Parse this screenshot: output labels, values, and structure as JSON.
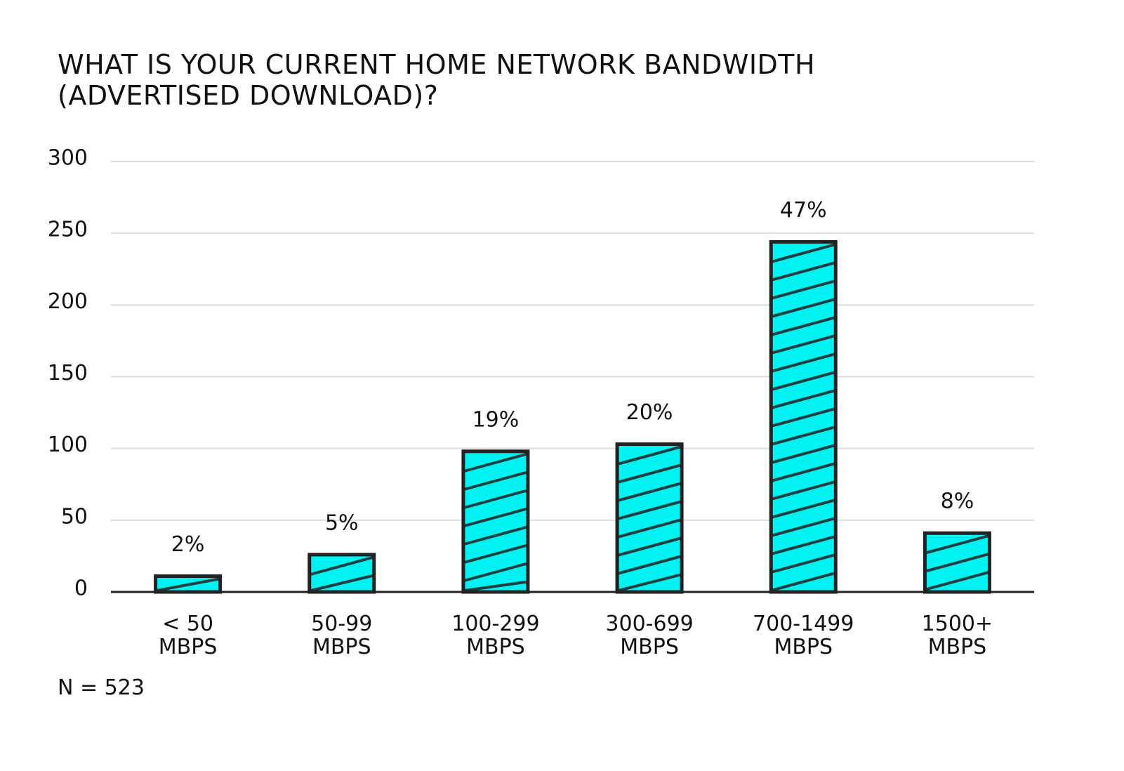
{
  "chart_data": {
    "type": "bar",
    "title": "WHAT IS YOUR CURRENT HOME NETWORK BANDWIDTH (ADVERTISED DOWNLOAD)?",
    "categories": [
      "< 50 MBPS",
      "50-99 MBPS",
      "100-299 MBPS",
      "300-699 MBPS",
      "700-1499 MBPS",
      "1500+ MBPS"
    ],
    "values": [
      11,
      26,
      98,
      103,
      244,
      41
    ],
    "value_labels": [
      "2%",
      "5%",
      "19%",
      "20%",
      "47%",
      "8%"
    ],
    "color": "#00f2f2",
    "ylim": [
      0,
      300
    ],
    "yticks": [
      0,
      50,
      100,
      150,
      200,
      250,
      300
    ],
    "grid": true,
    "note": "N = 523"
  }
}
